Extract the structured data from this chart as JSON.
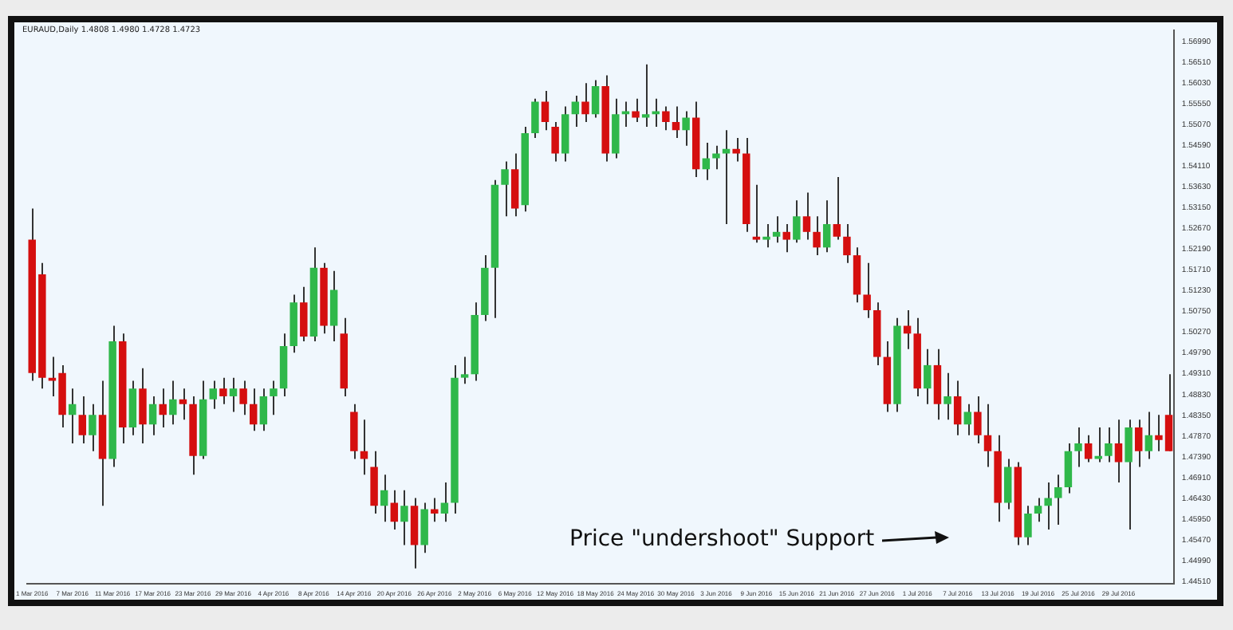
{
  "chart_data": {
    "type": "candlestick",
    "title": "EURAUD,Daily 1.4808 1.4980 1.4728 1.4723",
    "annotations": [
      "Price \"undershoot\" Support"
    ],
    "categories": [
      "1 Mar 2016",
      null,
      null,
      null,
      "7 Mar 2016",
      null,
      null,
      null,
      "11 Mar 2016",
      null,
      null,
      null,
      "17 Mar 2016",
      null,
      null,
      null,
      "23 Mar 2016",
      null,
      null,
      null,
      "29 Mar 2016",
      null,
      null,
      null,
      "4 Apr 2016",
      null,
      null,
      null,
      "8 Apr 2016",
      null,
      null,
      null,
      "14 Apr 2016",
      null,
      null,
      null,
      "20 Apr 2016",
      null,
      null,
      null,
      "26 Apr 2016",
      null,
      null,
      null,
      "2 May 2016",
      null,
      null,
      null,
      "6 May 2016",
      null,
      null,
      null,
      "12 May 2016",
      null,
      null,
      null,
      "18 May 2016",
      null,
      null,
      null,
      "24 May 2016",
      null,
      null,
      null,
      "30 May 2016",
      null,
      null,
      null,
      "3 Jun 2016",
      null,
      null,
      null,
      "9 Jun 2016",
      null,
      null,
      null,
      "15 Jun 2016",
      null,
      null,
      null,
      "21 Jun 2016",
      null,
      null,
      null,
      "27 Jun 2016",
      null,
      null,
      null,
      "1 Jul 2016",
      null,
      null,
      null,
      "7 Jul 2016",
      null,
      null,
      null,
      "13 Jul 2016",
      null,
      null,
      null,
      "19 Jul 2016",
      null,
      null,
      null,
      "25 Jul 2016",
      null,
      null,
      null,
      "29 Jul 2016",
      null,
      null,
      null,
      null,
      null
    ],
    "ohlc": [
      [
        1.5241,
        1.5313,
        1.4915,
        1.4933
      ],
      [
        1.5161,
        1.5187,
        1.4897,
        1.4922
      ],
      [
        1.4922,
        1.497,
        1.4879,
        1.4915
      ],
      [
        1.4933,
        1.4951,
        1.4807,
        1.4836
      ],
      [
        1.4836,
        1.4897,
        1.477,
        1.4861
      ],
      [
        1.4836,
        1.4879,
        1.477,
        1.4789
      ],
      [
        1.4789,
        1.4861,
        1.4752,
        1.4836
      ],
      [
        1.4836,
        1.4915,
        1.4626,
        1.4734
      ],
      [
        1.4734,
        1.5042,
        1.4716,
        1.5006
      ],
      [
        1.5006,
        1.5024,
        1.477,
        1.4807
      ],
      [
        1.4807,
        1.4915,
        1.4789,
        1.4897
      ],
      [
        1.4897,
        1.4944,
        1.477,
        1.4814
      ],
      [
        1.4814,
        1.4879,
        1.4789,
        1.4861
      ],
      [
        1.4861,
        1.4897,
        1.4807,
        1.4836
      ],
      [
        1.4836,
        1.4915,
        1.4814,
        1.4872
      ],
      [
        1.4872,
        1.4897,
        1.4825,
        1.4861
      ],
      [
        1.4861,
        1.4879,
        1.4698,
        1.4741
      ],
      [
        1.4741,
        1.4915,
        1.4734,
        1.4872
      ],
      [
        1.4872,
        1.4915,
        1.485,
        1.4897
      ],
      [
        1.4897,
        1.4922,
        1.4861,
        1.4879
      ],
      [
        1.4879,
        1.4922,
        1.4843,
        1.4897
      ],
      [
        1.4897,
        1.4915,
        1.4836,
        1.4861
      ],
      [
        1.4861,
        1.4897,
        1.4799,
        1.4814
      ],
      [
        1.4814,
        1.4897,
        1.4799,
        1.4879
      ],
      [
        1.4879,
        1.4915,
        1.4836,
        1.4897
      ],
      [
        1.4897,
        1.5024,
        1.4879,
        1.4995
      ],
      [
        1.4995,
        1.5114,
        1.498,
        1.5096
      ],
      [
        1.5096,
        1.5132,
        1.5006,
        1.5017
      ],
      [
        1.5017,
        1.5223,
        1.5006,
        1.5176
      ],
      [
        1.5176,
        1.5187,
        1.5024,
        1.5042
      ],
      [
        1.5042,
        1.5169,
        1.5006,
        1.5125
      ],
      [
        1.5024,
        1.506,
        1.4879,
        1.4897
      ],
      [
        1.4843,
        1.4861,
        1.4734,
        1.4752
      ],
      [
        1.4752,
        1.4825,
        1.4698,
        1.4734
      ],
      [
        1.4716,
        1.4752,
        1.4608,
        1.4626
      ],
      [
        1.4626,
        1.4698,
        1.4589,
        1.4662
      ],
      [
        1.4633,
        1.4662,
        1.4571,
        1.4589
      ],
      [
        1.4589,
        1.4662,
        1.4535,
        1.4626
      ],
      [
        1.4626,
        1.4644,
        1.4481,
        1.4535
      ],
      [
        1.4535,
        1.4633,
        1.4517,
        1.4618
      ],
      [
        1.4618,
        1.4644,
        1.4589,
        1.4608
      ],
      [
        1.4608,
        1.468,
        1.4589,
        1.4633
      ],
      [
        1.4633,
        1.4951,
        1.4608,
        1.4922
      ],
      [
        1.4922,
        1.497,
        1.4908,
        1.493
      ],
      [
        1.493,
        1.5096,
        1.4915,
        1.5067
      ],
      [
        1.5067,
        1.5205,
        1.5053,
        1.5176
      ],
      [
        1.5176,
        1.5379,
        1.506,
        1.5368
      ],
      [
        1.5368,
        1.5422,
        1.5295,
        1.5404
      ],
      [
        1.5404,
        1.544,
        1.5295,
        1.5313
      ],
      [
        1.5321,
        1.5502,
        1.5306,
        1.5487
      ],
      [
        1.5487,
        1.5567,
        1.5476,
        1.556
      ],
      [
        1.556,
        1.5585,
        1.5494,
        1.5513
      ],
      [
        1.5502,
        1.5513,
        1.5422,
        1.544
      ],
      [
        1.544,
        1.5549,
        1.5422,
        1.5531
      ],
      [
        1.5531,
        1.5574,
        1.5502,
        1.556
      ],
      [
        1.556,
        1.5603,
        1.5513,
        1.5531
      ],
      [
        1.5531,
        1.561,
        1.5523,
        1.5596
      ],
      [
        1.5596,
        1.5621,
        1.5422,
        1.544
      ],
      [
        1.544,
        1.5567,
        1.5429,
        1.5531
      ],
      [
        1.5531,
        1.556,
        1.5502,
        1.5538
      ],
      [
        1.5538,
        1.5567,
        1.5513,
        1.5523
      ],
      [
        1.5523,
        1.5646,
        1.5502,
        1.5531
      ],
      [
        1.5531,
        1.5567,
        1.5502,
        1.5538
      ],
      [
        1.5538,
        1.5549,
        1.5494,
        1.5513
      ],
      [
        1.5513,
        1.5549,
        1.5476,
        1.5494
      ],
      [
        1.5494,
        1.5538,
        1.5458,
        1.5523
      ],
      [
        1.5523,
        1.556,
        1.5386,
        1.5404
      ],
      [
        1.5404,
        1.5465,
        1.5379,
        1.5429
      ],
      [
        1.5429,
        1.5458,
        1.5404,
        1.544
      ],
      [
        1.544,
        1.5494,
        1.5277,
        1.5451
      ],
      [
        1.5451,
        1.5476,
        1.5422,
        1.544
      ],
      [
        1.544,
        1.5476,
        1.5259,
        1.5277
      ],
      [
        1.5248,
        1.5368,
        1.5234,
        1.5241
      ],
      [
        1.5241,
        1.5277,
        1.5223,
        1.5248
      ],
      [
        1.5248,
        1.5295,
        1.5234,
        1.5259
      ],
      [
        1.5259,
        1.5277,
        1.5212,
        1.5241
      ],
      [
        1.5241,
        1.5332,
        1.5234,
        1.5295
      ],
      [
        1.5295,
        1.535,
        1.5241,
        1.5259
      ],
      [
        1.5259,
        1.5295,
        1.5205,
        1.5223
      ],
      [
        1.5223,
        1.5332,
        1.5212,
        1.5277
      ],
      [
        1.5277,
        1.5386,
        1.5241,
        1.5248
      ],
      [
        1.5248,
        1.5277,
        1.5187,
        1.5205
      ],
      [
        1.5205,
        1.5223,
        1.5096,
        1.5114
      ],
      [
        1.5114,
        1.5187,
        1.506,
        1.5078
      ],
      [
        1.5078,
        1.5096,
        1.4951,
        1.497
      ],
      [
        1.497,
        1.5006,
        1.4843,
        1.4861
      ],
      [
        1.4861,
        1.506,
        1.4843,
        1.5042
      ],
      [
        1.5042,
        1.5078,
        1.4988,
        1.5024
      ],
      [
        1.5024,
        1.506,
        1.4879,
        1.4897
      ],
      [
        1.4897,
        1.4988,
        1.4861,
        1.4951
      ],
      [
        1.4951,
        1.4988,
        1.4825,
        1.4861
      ],
      [
        1.4861,
        1.4933,
        1.4825,
        1.4879
      ],
      [
        1.4879,
        1.4915,
        1.4789,
        1.4814
      ],
      [
        1.4814,
        1.4861,
        1.4789,
        1.4843
      ],
      [
        1.4843,
        1.4879,
        1.477,
        1.4789
      ],
      [
        1.4789,
        1.4861,
        1.4716,
        1.4752
      ],
      [
        1.4752,
        1.4789,
        1.4589,
        1.4633
      ],
      [
        1.4633,
        1.4734,
        1.4618,
        1.4716
      ],
      [
        1.4716,
        1.4727,
        1.4535,
        1.4553
      ],
      [
        1.4553,
        1.4626,
        1.4535,
        1.4608
      ],
      [
        1.4608,
        1.4644,
        1.4589,
        1.4626
      ],
      [
        1.4626,
        1.468,
        1.4571,
        1.4644
      ],
      [
        1.4644,
        1.4698,
        1.4582,
        1.4669
      ],
      [
        1.4669,
        1.477,
        1.4655,
        1.4752
      ],
      [
        1.4752,
        1.4807,
        1.4716,
        1.477
      ],
      [
        1.477,
        1.4789,
        1.4727,
        1.4734
      ],
      [
        1.4734,
        1.4807,
        1.4727,
        1.4741
      ],
      [
        1.4741,
        1.4807,
        1.4727,
        1.477
      ],
      [
        1.477,
        1.4825,
        1.468,
        1.4727
      ],
      [
        1.4727,
        1.4825,
        1.4571,
        1.4807
      ],
      [
        1.4807,
        1.4825,
        1.4716,
        1.4752
      ],
      [
        1.4752,
        1.4843,
        1.4734,
        1.4789
      ],
      [
        1.4789,
        1.4836,
        1.4752,
        1.4778
      ],
      [
        1.4836,
        1.493,
        1.4752,
        1.4752
      ]
    ],
    "colors": [
      "#d50f0f",
      "#d50f0f",
      "#d50f0f",
      "#d50f0f",
      "#2fb84a",
      "#d50f0f",
      "#2fb84a",
      "#d50f0f",
      "#2fb84a",
      "#d50f0f",
      "#2fb84a",
      "#d50f0f",
      "#2fb84a",
      "#d50f0f",
      "#2fb84a",
      "#d50f0f",
      "#d50f0f",
      "#2fb84a",
      "#2fb84a",
      "#d50f0f",
      "#2fb84a",
      "#d50f0f",
      "#d50f0f",
      "#2fb84a",
      "#2fb84a",
      "#2fb84a",
      "#2fb84a",
      "#d50f0f",
      "#2fb84a",
      "#d50f0f",
      "#2fb84a",
      "#d50f0f",
      "#d50f0f",
      "#d50f0f",
      "#d50f0f",
      "#2fb84a",
      "#d50f0f",
      "#2fb84a",
      "#d50f0f",
      "#2fb84a",
      "#d50f0f",
      "#2fb84a",
      "#2fb84a",
      "#2fb84a",
      "#2fb84a",
      "#2fb84a",
      "#2fb84a",
      "#2fb84a",
      "#d50f0f",
      "#2fb84a",
      "#2fb84a",
      "#d50f0f",
      "#d50f0f",
      "#2fb84a",
      "#2fb84a",
      "#d50f0f",
      "#2fb84a",
      "#d50f0f",
      "#2fb84a",
      "#2fb84a",
      "#d50f0f",
      "#2fb84a",
      "#2fb84a",
      "#d50f0f",
      "#d50f0f",
      "#2fb84a",
      "#d50f0f",
      "#2fb84a",
      "#2fb84a",
      "#2fb84a",
      "#d50f0f",
      "#d50f0f",
      "#d50f0f",
      "#2fb84a",
      "#2fb84a",
      "#d50f0f",
      "#2fb84a",
      "#d50f0f",
      "#d50f0f",
      "#2fb84a",
      "#d50f0f",
      "#d50f0f",
      "#d50f0f",
      "#d50f0f",
      "#d50f0f",
      "#d50f0f",
      "#2fb84a",
      "#d50f0f",
      "#d50f0f",
      "#2fb84a",
      "#d50f0f",
      "#2fb84a",
      "#d50f0f",
      "#2fb84a",
      "#d50f0f",
      "#d50f0f",
      "#d50f0f",
      "#2fb84a",
      "#d50f0f",
      "#2fb84a",
      "#2fb84a",
      "#2fb84a",
      "#2fb84a",
      "#2fb84a",
      "#2fb84a",
      "#d50f0f",
      "#2fb84a",
      "#2fb84a",
      "#d50f0f",
      "#2fb84a",
      "#d50f0f",
      "#2fb84a",
      "#d50f0f",
      "#d50f0f"
    ],
    "ylim": [
      1.4445,
      1.5725
    ],
    "yticks": [
      {
        "value": 1.5699,
        "label": "1.56990"
      },
      {
        "value": 1.5651,
        "label": "1.56510"
      },
      {
        "value": 1.5603,
        "label": "1.56030"
      },
      {
        "value": 1.5555,
        "label": "1.55550"
      },
      {
        "value": 1.5507,
        "label": "1.55070"
      },
      {
        "value": 1.5459,
        "label": "1.54590"
      },
      {
        "value": 1.5411,
        "label": "1.54110"
      },
      {
        "value": 1.5363,
        "label": "1.53630"
      },
      {
        "value": 1.5315,
        "label": "1.53150"
      },
      {
        "value": 1.5267,
        "label": "1.52670"
      },
      {
        "value": 1.5219,
        "label": "1.52190"
      },
      {
        "value": 1.5171,
        "label": "1.51710"
      },
      {
        "value": 1.5123,
        "label": "1.51230"
      },
      {
        "value": 1.5075,
        "label": "1.50750"
      },
      {
        "value": 1.5027,
        "label": "1.50270"
      },
      {
        "value": 1.4979,
        "label": "1.49790"
      },
      {
        "value": 1.4931,
        "label": "1.49310"
      },
      {
        "value": 1.4883,
        "label": "1.48830"
      },
      {
        "value": 1.4835,
        "label": "1.48350"
      },
      {
        "value": 1.4787,
        "label": "1.47870"
      },
      {
        "value": 1.4739,
        "label": "1.47390"
      },
      {
        "value": 1.4691,
        "label": "1.46910"
      },
      {
        "value": 1.4643,
        "label": "1.46430"
      },
      {
        "value": 1.4595,
        "label": "1.45950"
      },
      {
        "value": 1.4547,
        "label": "1.45470"
      },
      {
        "value": 1.4499,
        "label": "1.44990"
      },
      {
        "value": 1.4451,
        "label": "1.44510"
      }
    ],
    "grid": false,
    "legend": false
  }
}
